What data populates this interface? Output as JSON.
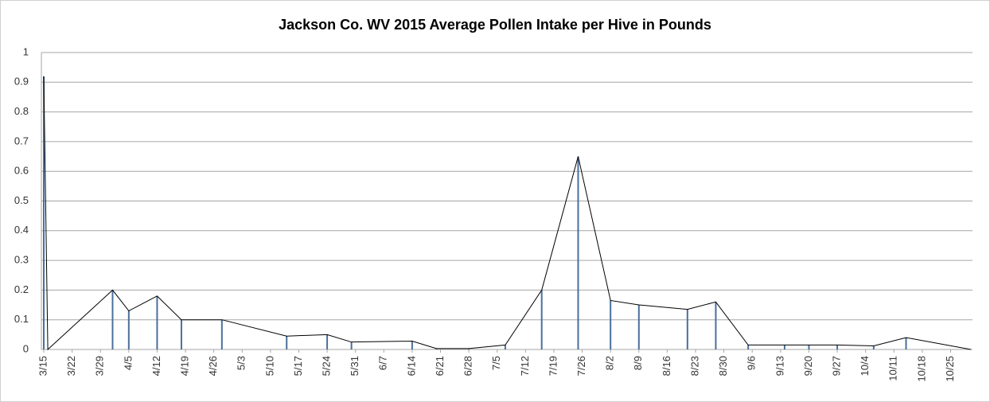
{
  "chart_data": {
    "type": "line",
    "title": "Jackson Co. WV 2015 Average Pollen Intake per Hive in Pounds",
    "x": [
      "3/15",
      "3/16",
      "4/1",
      "4/5",
      "4/12",
      "4/18",
      "4/28",
      "5/14",
      "5/24",
      "5/30",
      "6/14",
      "6/20",
      "6/28",
      "7/7",
      "7/16",
      "7/25",
      "8/2",
      "8/9",
      "8/21",
      "8/28",
      "9/5",
      "9/14",
      "9/20",
      "9/27",
      "10/6",
      "10/14",
      "10/30"
    ],
    "series": [
      {
        "name": "Average Pollen Intake",
        "color": "#000000",
        "drop_line_color": "#4a6f9c",
        "values": [
          0.92,
          0,
          0.2,
          0.13,
          0.18,
          0.1,
          0.1,
          0.045,
          0.05,
          0.025,
          0.028,
          0.003,
          0.003,
          0.015,
          0.2,
          0.65,
          0.165,
          0.15,
          0.135,
          0.16,
          0.015,
          0.015,
          0.015,
          0.015,
          0.012,
          0.04,
          0
        ]
      }
    ],
    "xlim": [
      "3/15",
      "10/31"
    ],
    "xticks": [
      "3/15",
      "3/22",
      "3/29",
      "4/5",
      "4/12",
      "4/19",
      "4/26",
      "5/3",
      "5/10",
      "5/17",
      "5/24",
      "5/31",
      "6/7",
      "6/14",
      "6/21",
      "6/28",
      "7/5",
      "7/12",
      "7/19",
      "7/26",
      "8/2",
      "8/9",
      "8/16",
      "8/23",
      "8/30",
      "9/6",
      "9/13",
      "9/20",
      "9/27",
      "10/4",
      "10/11",
      "10/18",
      "10/25"
    ],
    "ylim": [
      0,
      1
    ],
    "yticks": [
      0,
      0.1,
      0.2,
      0.3,
      0.4,
      0.5,
      0.6,
      0.7,
      0.8,
      0.9,
      1
    ],
    "grid": true
  }
}
